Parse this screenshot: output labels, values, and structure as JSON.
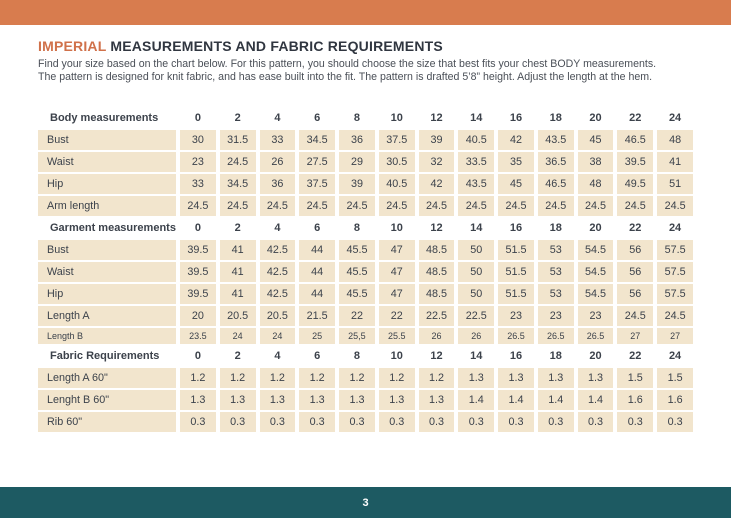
{
  "page": {
    "title_accent": "IMPERIAL",
    "title_rest": " MEASUREMENTS AND FABRIC REQUIREMENTS",
    "intro_line1": "Find your size based on the chart below. For this pattern, you should choose the size that best fits your chest BODY measurements.",
    "intro_line2": "The pattern is designed for knit fabric, and has ease built into the fit. The pattern is drafted 5’8” height. Adjust the length at the hem.",
    "page_number": "3"
  },
  "colors": {
    "top_bar": "#d87c4e",
    "accent": "#d0714a",
    "heading": "#303640",
    "body_text": "#4a4f57",
    "table_text": "#3c424b",
    "cell_bg": "#f2e5cd",
    "footer_bg": "#1d5a62",
    "footer_text": "#ffffff"
  },
  "table": {
    "sizes": [
      "0",
      "2",
      "4",
      "6",
      "8",
      "10",
      "12",
      "14",
      "16",
      "18",
      "20",
      "22",
      "24"
    ],
    "sections": [
      {
        "header": "Body measurements",
        "rows": [
          {
            "label": "Bust",
            "values": [
              "30",
              "31.5",
              "33",
              "34.5",
              "36",
              "37.5",
              "39",
              "40.5",
              "42",
              "43.5",
              "45",
              "46.5",
              "48"
            ]
          },
          {
            "label": "Waist",
            "values": [
              "23",
              "24.5",
              "26",
              "27.5",
              "29",
              "30.5",
              "32",
              "33.5",
              "35",
              "36.5",
              "38",
              "39.5",
              "41"
            ]
          },
          {
            "label": "Hip",
            "values": [
              "33",
              "34.5",
              "36",
              "37.5",
              "39",
              "40.5",
              "42",
              "43.5",
              "45",
              "46.5",
              "48",
              "49.5",
              "51"
            ]
          },
          {
            "label": "Arm length",
            "values": [
              "24.5",
              "24.5",
              "24.5",
              "24.5",
              "24.5",
              "24.5",
              "24.5",
              "24.5",
              "24.5",
              "24.5",
              "24.5",
              "24.5",
              "24.5"
            ]
          }
        ]
      },
      {
        "header": "Garment measurements",
        "rows": [
          {
            "label": "Bust",
            "values": [
              "39.5",
              "41",
              "42.5",
              "44",
              "45.5",
              "47",
              "48.5",
              "50",
              "51.5",
              "53",
              "54.5",
              "56",
              "57.5"
            ]
          },
          {
            "label": "Waist",
            "values": [
              "39.5",
              "41",
              "42.5",
              "44",
              "45.5",
              "47",
              "48.5",
              "50",
              "51.5",
              "53",
              "54.5",
              "56",
              "57.5"
            ]
          },
          {
            "label": "Hip",
            "values": [
              "39.5",
              "41",
              "42.5",
              "44",
              "45.5",
              "47",
              "48.5",
              "50",
              "51.5",
              "53",
              "54.5",
              "56",
              "57.5"
            ]
          },
          {
            "label": "Length A",
            "values": [
              "20",
              "20.5",
              "20.5",
              "21.5",
              "22",
              "22",
              "22.5",
              "22.5",
              "23",
              "23",
              "23",
              "24.5",
              "24.5"
            ]
          },
          {
            "label": "Length B",
            "small": true,
            "values": [
              "23.5",
              "24",
              "24",
              "25",
              "25,5",
              "25.5",
              "26",
              "26",
              "26.5",
              "26.5",
              "26.5",
              "27",
              "27"
            ]
          }
        ]
      },
      {
        "header": "Fabric Requirements",
        "rows": [
          {
            "label": "Length A 60\"",
            "values": [
              "1.2",
              "1.2",
              "1.2",
              "1.2",
              "1.2",
              "1.2",
              "1.2",
              "1.3",
              "1.3",
              "1.3",
              "1.3",
              "1.5",
              "1.5"
            ]
          },
          {
            "label": "Lenght B 60\"",
            "values": [
              "1.3",
              "1.3",
              "1.3",
              "1.3",
              "1.3",
              "1.3",
              "1.3",
              "1.4",
              "1.4",
              "1.4",
              "1.4",
              "1.6",
              "1.6"
            ]
          },
          {
            "label": "Rib 60\"",
            "values": [
              "0.3",
              "0.3",
              "0.3",
              "0.3",
              "0.3",
              "0.3",
              "0.3",
              "0.3",
              "0.3",
              "0.3",
              "0.3",
              "0.3",
              "0.3"
            ]
          }
        ]
      }
    ]
  }
}
